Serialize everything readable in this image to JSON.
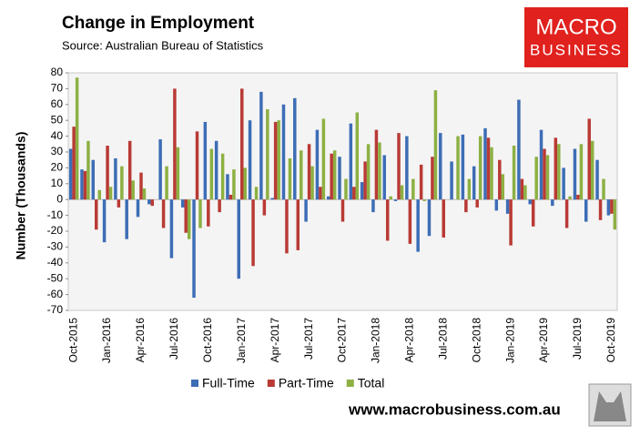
{
  "chart_data": {
    "type": "bar",
    "title": "Change in Employment",
    "subtitle": "Source: Australian Bureau of Statistics",
    "y_label": "Number (Thousands)",
    "logo_line1": "MACRO",
    "logo_line2": "BUSINESS",
    "footer": "www.macrobusiness.com.au",
    "categories": [
      "Oct-2015",
      null,
      null,
      "Jan-2016",
      null,
      null,
      "Apr-2016",
      null,
      null,
      "Jul-2016",
      null,
      null,
      "Oct-2016",
      null,
      null,
      "Jan-2017",
      null,
      null,
      "Apr-2017",
      null,
      null,
      "Jul-2017",
      null,
      null,
      "Oct-2017",
      null,
      null,
      "Jan-2018",
      null,
      null,
      "Apr-2018",
      null,
      null,
      "Jul-2018",
      null,
      null,
      "Oct-2018",
      null,
      null,
      "Jan-2019",
      null,
      null,
      "Apr-2019",
      null,
      null,
      "Jul-2019",
      null,
      null,
      "Oct-2019"
    ],
    "series": [
      {
        "name": "Full-Time",
        "color": "#3d6db5",
        "values": [
          32,
          19,
          25,
          -27,
          26,
          -25,
          -11,
          -3,
          38,
          -37,
          -5,
          -62,
          49,
          37,
          16,
          -50,
          50,
          68,
          1,
          60,
          64,
          -14,
          44,
          2,
          27,
          48,
          11,
          -8,
          28,
          -1,
          40,
          -33,
          -23,
          42,
          24,
          41,
          21,
          45,
          -7,
          -9,
          63,
          -3,
          44,
          -4,
          20,
          32,
          -14,
          25,
          -10
        ]
      },
      {
        "name": "Part-Time",
        "color": "#b93a35",
        "values": [
          46,
          18,
          -19,
          34,
          -5,
          37,
          17,
          -4,
          -18,
          70,
          -21,
          43,
          -17,
          -8,
          3,
          70,
          -42,
          -10,
          49,
          -34,
          -32,
          35,
          8,
          29,
          -14,
          8,
          24,
          44,
          -26,
          42,
          -28,
          22,
          27,
          -24,
          0,
          -8,
          -5,
          39,
          25,
          -29,
          13,
          -17,
          32,
          39,
          -18,
          3,
          51,
          -13,
          -9
        ]
      },
      {
        "name": "Total",
        "color": "#8db043",
        "values": [
          77,
          37,
          6,
          8,
          21,
          12,
          7,
          0,
          21,
          33,
          -25,
          -18,
          32,
          29,
          19,
          20,
          8,
          57,
          50,
          26,
          31,
          21,
          51,
          31,
          13,
          55,
          35,
          36,
          2,
          9,
          13,
          -1,
          69,
          0,
          40,
          13,
          40,
          33,
          16,
          34,
          9,
          27,
          28,
          35,
          2,
          35,
          37,
          13,
          -19
        ]
      }
    ],
    "ylim": [
      -70,
      80
    ],
    "yticks": [
      -70,
      -60,
      -50,
      -40,
      -30,
      -20,
      -10,
      0,
      10,
      20,
      30,
      40,
      50,
      60,
      70,
      80
    ],
    "legend": "bottom"
  }
}
